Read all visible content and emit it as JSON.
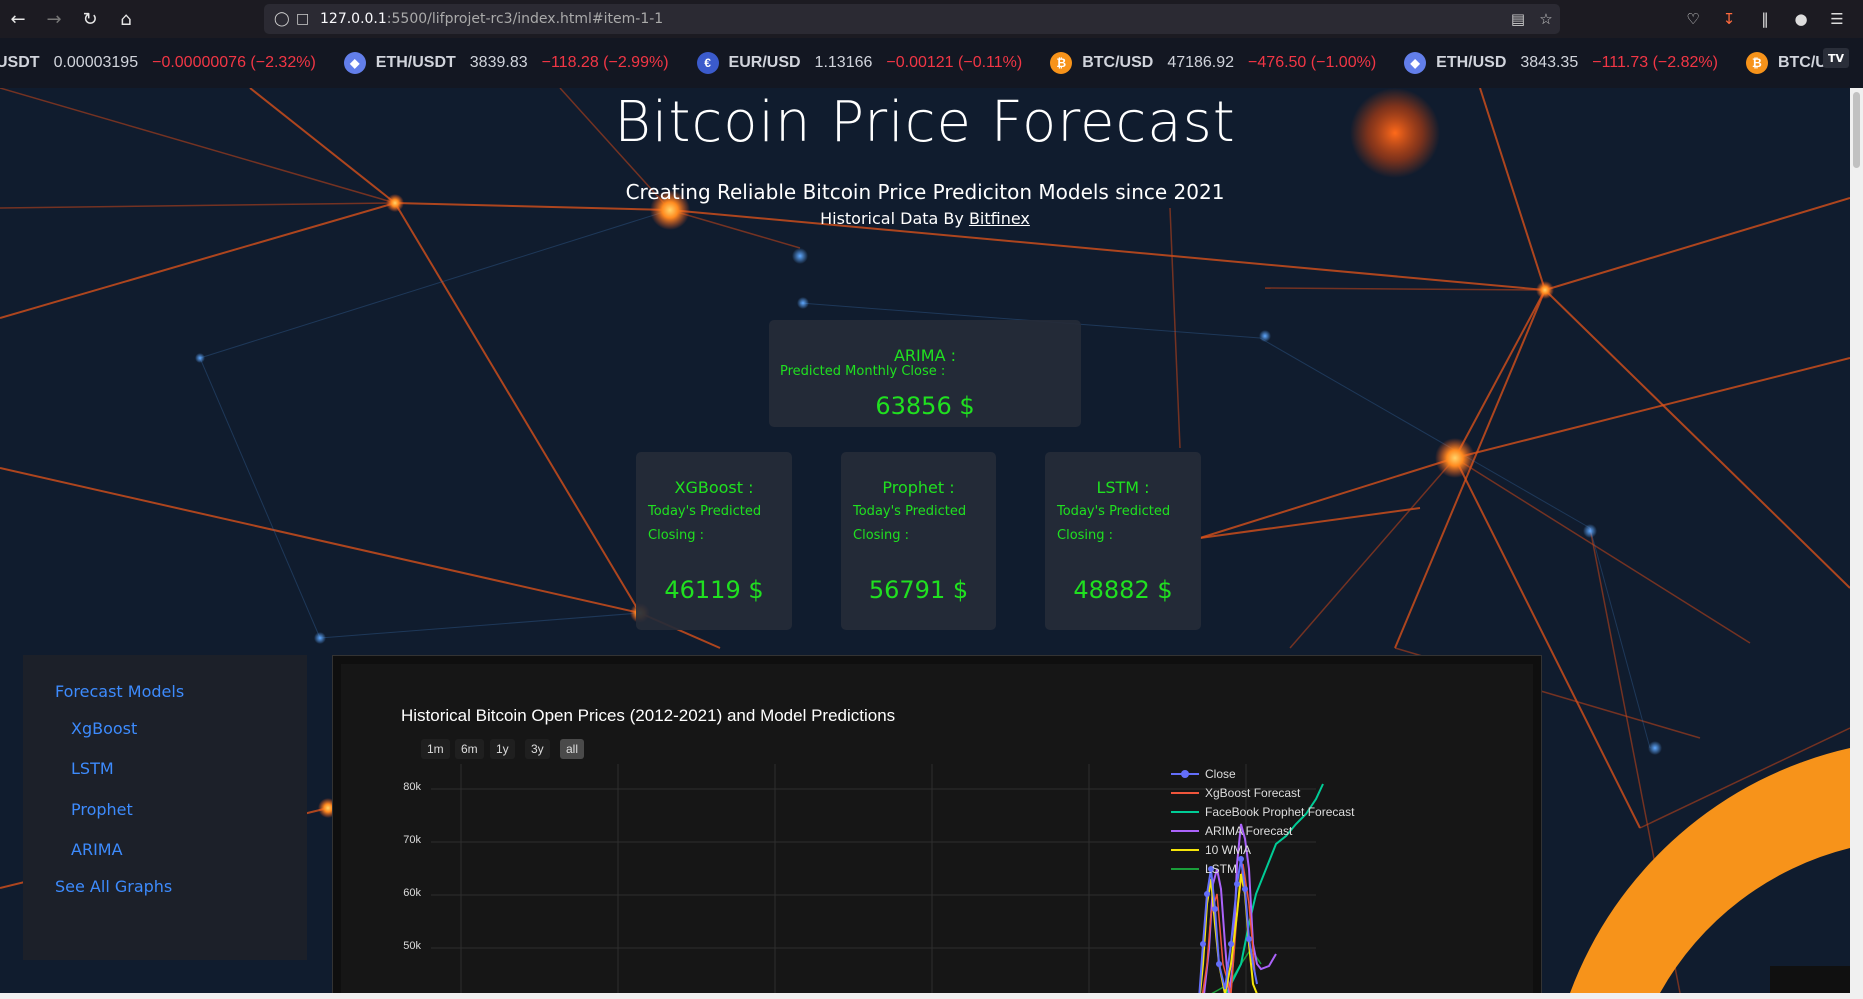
{
  "browser": {
    "url_host": "127.0.0.1",
    "url_path": ":5500/lifprojet-rc3/index.html#item-1-1"
  },
  "ticker": [
    {
      "symbol": "USDT",
      "price": "0.00003195",
      "change": "−0.00000076 (−2.32%)",
      "icon": "none",
      "color": "#000000"
    },
    {
      "symbol": "ETH/USDT",
      "price": "3839.83",
      "change": "−118.28 (−2.99%)",
      "icon": "eth-icon",
      "color": "#627eea"
    },
    {
      "symbol": "EUR/USD",
      "price": "1.13166",
      "change": "−0.00121 (−0.11%)",
      "icon": "eu-us-flag-icon",
      "color": "#3b5bcc"
    },
    {
      "symbol": "BTC/USD",
      "price": "47186.92",
      "change": "−476.50 (−1.00%)",
      "icon": "btc-icon",
      "color": "#f7931a"
    },
    {
      "symbol": "ETH/USD",
      "price": "3843.35",
      "change": "−111.73 (−2.82%)",
      "icon": "eth-icon",
      "color": "#627eea"
    },
    {
      "symbol": "BTC/U",
      "price": "",
      "change": "",
      "icon": "btc-icon",
      "color": "#f7931a"
    }
  ],
  "hero": {
    "title": "Bitcoin Price Forecast",
    "subtitle": "Creating Reliable Bitcoin Price Prediciton Models since 2021",
    "source_prefix": "Historical Data By ",
    "source_link": "Bitfinex"
  },
  "cards": {
    "arima": {
      "name": "ARIMA :",
      "desc": "Predicted Monthly Close :",
      "value": "63856 $"
    },
    "xgboost": {
      "name": "XGBoost :",
      "desc1": "Today's Predicted",
      "desc2": "Closing :",
      "value": "46119 $"
    },
    "prophet": {
      "name": "Prophet :",
      "desc1": "Today's Predicted",
      "desc2": "Closing :",
      "value": "56791 $"
    },
    "lstm": {
      "name": "LSTM :",
      "desc1": "Today's Predicted",
      "desc2": "Closing :",
      "value": "48882 $"
    }
  },
  "sidebar": {
    "heading": "Forecast Models",
    "items": [
      "XgBoost",
      "LSTM",
      "Prophet",
      "ARIMA"
    ],
    "footer": "See All Graphs"
  },
  "chart": {
    "title": "Historical Bitcoin Open Prices (2012-2021) and Model Predictions",
    "range_buttons": [
      "1m",
      "6m",
      "1y",
      "3y",
      "all"
    ],
    "active_range": "all",
    "y_ticks": [
      "80k",
      "70k",
      "60k",
      "50k"
    ],
    "legend": [
      {
        "name": "Close",
        "color": "#636efa"
      },
      {
        "name": "XgBoost Forecast",
        "color": "#ef553b"
      },
      {
        "name": "FaceBook Prophet Forecast",
        "color": "#00cc96"
      },
      {
        "name": "ARIMA Forecast",
        "color": "#ab63fa"
      },
      {
        "name": "10 WMA",
        "color": "#f5e50a"
      },
      {
        "name": "LSTM",
        "color": "#1a9e3a"
      }
    ]
  }
}
